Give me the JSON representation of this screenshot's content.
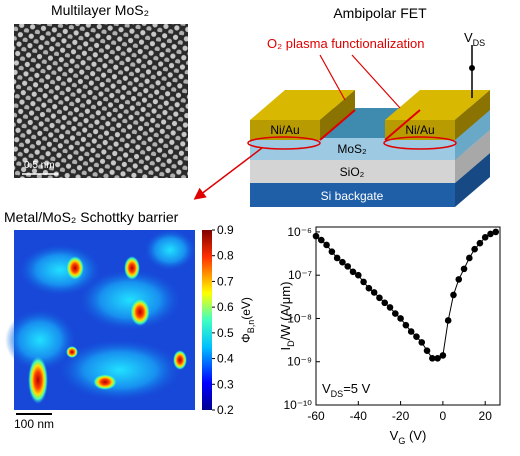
{
  "tem": {
    "title": "Multilayer MoS₂",
    "scale_bar": "0.5 nm"
  },
  "device": {
    "title": "Ambipolar FET",
    "annotation": "O₂ plasma functionalization",
    "vds": {
      "main": "V",
      "sub": "DS"
    },
    "contact_left": "Ni/Au",
    "contact_right": "Ni/Au",
    "channel": "MoS₂",
    "oxide": "SiO₂",
    "gate": "Si backgate"
  },
  "map": {
    "title": "Metal/MoS₂ Schottky barrier",
    "scale_bar": "100 nm",
    "colorbar": {
      "range": [
        0.2,
        0.9
      ],
      "ticks": [
        0.2,
        0.3,
        0.4,
        0.5,
        0.6,
        0.7,
        0.8,
        0.9
      ],
      "label": {
        "main": "Φ",
        "sub": "B,n",
        "rest": "(eV)"
      }
    }
  },
  "chart_data": {
    "type": "line",
    "ylog": true,
    "color": "#000000",
    "x": [
      -60,
      -57.5,
      -55,
      -52.5,
      -50,
      -47.5,
      -45,
      -42.5,
      -40,
      -37.5,
      -35,
      -32.5,
      -30,
      -27.5,
      -25,
      -22.5,
      -20,
      -17.5,
      -15,
      -12.5,
      -10,
      -7.5,
      -5,
      -2.5,
      0,
      2.5,
      5,
      7.5,
      10,
      12.5,
      15,
      17.5,
      20,
      22.5,
      25
    ],
    "values": [
      8e-07,
      6.5e-07,
      5e-07,
      3.5e-07,
      2.5e-07,
      2e-07,
      1.6e-07,
      1.2e-07,
      1e-07,
      7e-08,
      5e-08,
      4e-08,
      3e-08,
      2.3e-08,
      1.8e-08,
      1.3e-08,
      1e-08,
      7e-09,
      5e-09,
      3.8e-09,
      2.8e-09,
      1.8e-09,
      1.2e-09,
      1.2e-09,
      1.4e-09,
      9e-09,
      3.5e-08,
      8e-08,
      1.4e-07,
      2.5e-07,
      4e-07,
      5.5e-07,
      7.5e-07,
      9e-07,
      1e-06
    ],
    "xlim": [
      -60,
      27
    ],
    "xticks": [
      -60,
      -40,
      -20,
      0,
      20
    ],
    "ylim": [
      1e-10,
      1.3e-06
    ],
    "yticks": [
      {
        "value": 1e-10,
        "label": "10⁻¹⁰"
      },
      {
        "value": 1e-09,
        "label": "10⁻⁹"
      },
      {
        "value": 1e-08,
        "label": "10⁻⁸"
      },
      {
        "value": 1e-07,
        "label": "10⁻⁷"
      },
      {
        "value": 1e-06,
        "label": "10⁻⁶"
      }
    ],
    "xlabel": {
      "main": "V",
      "sub": "G",
      "rest": " (V)"
    },
    "ylabel": {
      "main": "I",
      "sub": "D",
      "rest": "/W (A/μm)"
    },
    "annotation": {
      "main": "V",
      "sub": "DS",
      "rest": "=5 V"
    }
  }
}
